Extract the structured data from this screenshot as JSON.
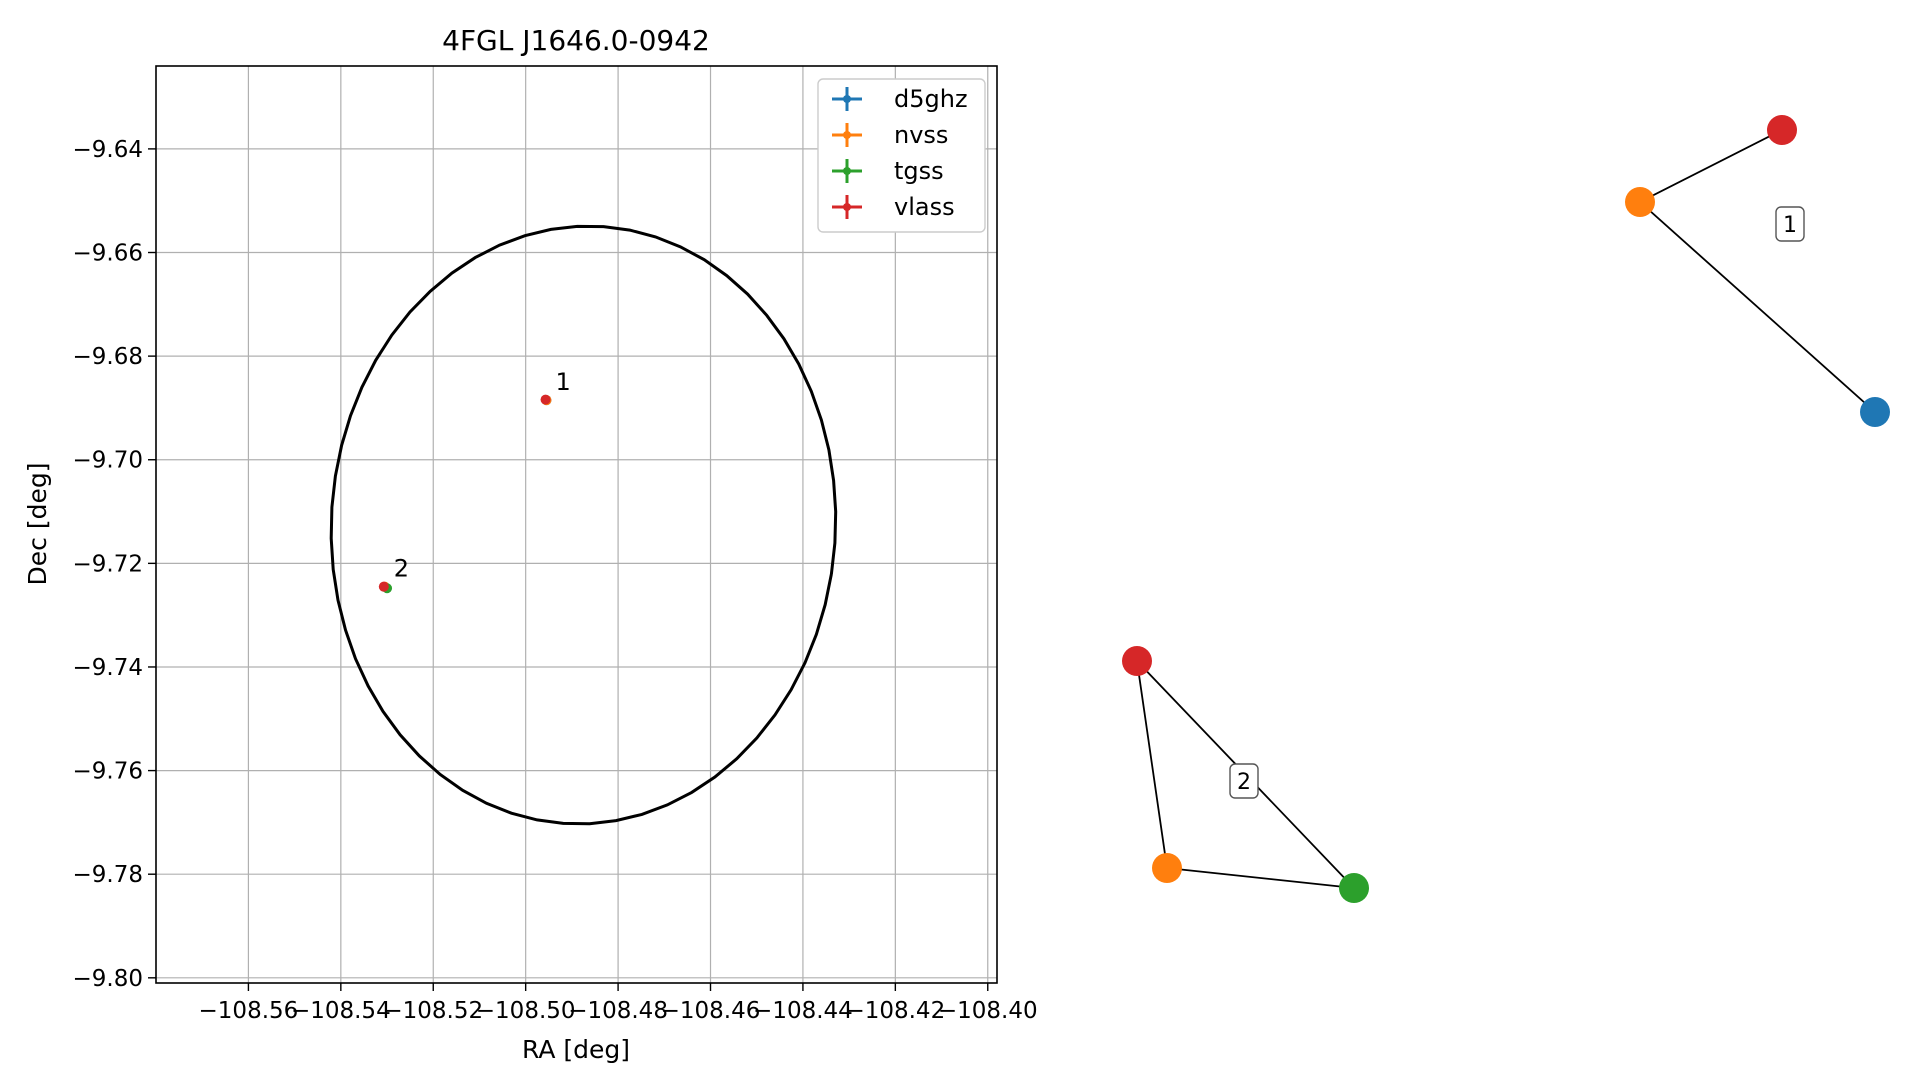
{
  "chart_data": [
    {
      "type": "scatter",
      "title": "4FGL J1646.0-0942",
      "xlabel": "RA [deg]",
      "ylabel": "Dec [deg]",
      "xlim": [
        -108.58,
        -108.398
      ],
      "ylim": [
        -9.801,
        -9.624
      ],
      "xticks": [
        -108.56,
        -108.54,
        -108.52,
        -108.5,
        -108.48,
        -108.46,
        -108.44,
        -108.42,
        -108.4
      ],
      "xtick_labels": [
        "−108.56",
        "−108.54",
        "−108.52",
        "−108.50",
        "−108.48",
        "−108.46",
        "−108.44",
        "−108.42",
        "−108.40"
      ],
      "yticks": [
        -9.64,
        -9.66,
        -9.68,
        -9.7,
        -9.72,
        -9.74,
        -9.76,
        -9.78,
        -9.8
      ],
      "ytick_labels": [
        "−9.64",
        "−9.66",
        "−9.68",
        "−9.70",
        "−9.72",
        "−9.74",
        "−9.76",
        "−9.78",
        "−9.80"
      ],
      "grid": true,
      "legend_position": "upper right",
      "series": [
        {
          "name": "d5ghz",
          "color": "#1f77b4",
          "points": [
            {
              "x": -108.4955,
              "y": -9.6885
            }
          ]
        },
        {
          "name": "nvss",
          "color": "#ff7f0e",
          "points": [
            {
              "x": -108.4955,
              "y": -9.6885
            },
            {
              "x": -108.5305,
              "y": -9.7245
            }
          ]
        },
        {
          "name": "tgss",
          "color": "#2ca02c",
          "points": [
            {
              "x": -108.53,
              "y": -9.7248
            }
          ]
        },
        {
          "name": "vlass",
          "color": "#d62728",
          "points": [
            {
              "x": -108.4957,
              "y": -9.6884
            },
            {
              "x": -108.5307,
              "y": -9.7245
            }
          ]
        }
      ],
      "annotations": [
        {
          "text": "1",
          "x": -108.4955,
          "y": -9.6885
        },
        {
          "text": "2",
          "x": -108.5305,
          "y": -9.7245
        }
      ],
      "ellipse": {
        "center": [
          -108.4875,
          -9.7126
        ],
        "semi_axis_ra": 0.0545,
        "semi_axis_dec": 0.0578,
        "angle_deg": -10,
        "color": "#000000"
      }
    },
    {
      "type": "network",
      "groups": [
        {
          "label": "1",
          "nodes": [
            {
              "id": "nvss",
              "color": "#ff7f0e"
            },
            {
              "id": "vlass",
              "color": "#d62728"
            },
            {
              "id": "d5ghz",
              "color": "#1f77b4"
            }
          ],
          "edges": [
            [
              "nvss",
              "vlass"
            ],
            [
              "nvss",
              "d5ghz"
            ]
          ]
        },
        {
          "label": "2",
          "nodes": [
            {
              "id": "vlass",
              "color": "#d62728"
            },
            {
              "id": "nvss",
              "color": "#ff7f0e"
            },
            {
              "id": "tgss",
              "color": "#2ca02c"
            }
          ],
          "edges": [
            [
              "vlass",
              "nvss"
            ],
            [
              "vlass",
              "tgss"
            ],
            [
              "nvss",
              "tgss"
            ]
          ]
        }
      ]
    }
  ]
}
